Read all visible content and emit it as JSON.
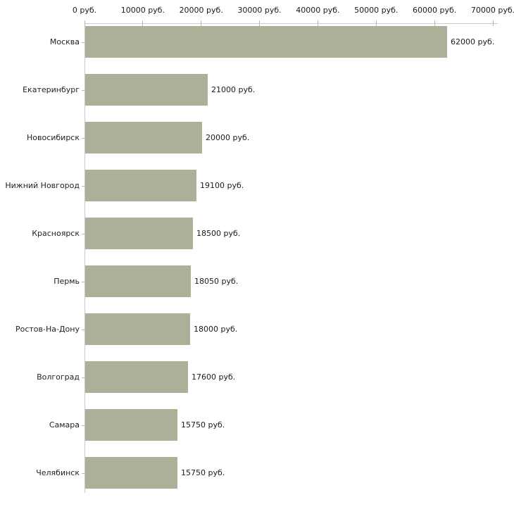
{
  "chart_data": {
    "type": "bar",
    "orientation": "horizontal",
    "title": "",
    "xlabel": "",
    "ylabel": "",
    "unit": "руб.",
    "xlim": [
      0,
      70000
    ],
    "grid": false,
    "legend": "none",
    "categories": [
      "Москва",
      "Екатеринбург",
      "Новосибирск",
      "Нижний Новгород",
      "Красноярск",
      "Пермь",
      "Ростов-На-Дону",
      "Волгоград",
      "Самара",
      "Челябинск"
    ],
    "values": [
      62000,
      21000,
      20000,
      19100,
      18500,
      18050,
      18000,
      17600,
      15750,
      15750
    ],
    "value_labels": [
      "62000 руб.",
      "21000 руб.",
      "20000 руб.",
      "19100 руб.",
      "18500 руб.",
      "18050 руб.",
      "18000 руб.",
      "17600 руб.",
      "15750 руб.",
      "15750 руб."
    ],
    "x_ticks": [
      {
        "value": 0,
        "label": "0 руб."
      },
      {
        "value": 10000,
        "label": "10000 руб."
      },
      {
        "value": 20000,
        "label": "20000 руб."
      },
      {
        "value": 30000,
        "label": "30000 руб."
      },
      {
        "value": 40000,
        "label": "40000 руб."
      },
      {
        "value": 50000,
        "label": "50000 руб."
      },
      {
        "value": 60000,
        "label": "60000 руб."
      },
      {
        "value": 70000,
        "label": "70000 руб."
      }
    ],
    "colors": {
      "bar_fill": "#abb199",
      "axis_line": "#c9c9c9",
      "tick_mark": "#b9bc9c",
      "text": "#1a1a1a",
      "background": "#ffffff"
    }
  }
}
